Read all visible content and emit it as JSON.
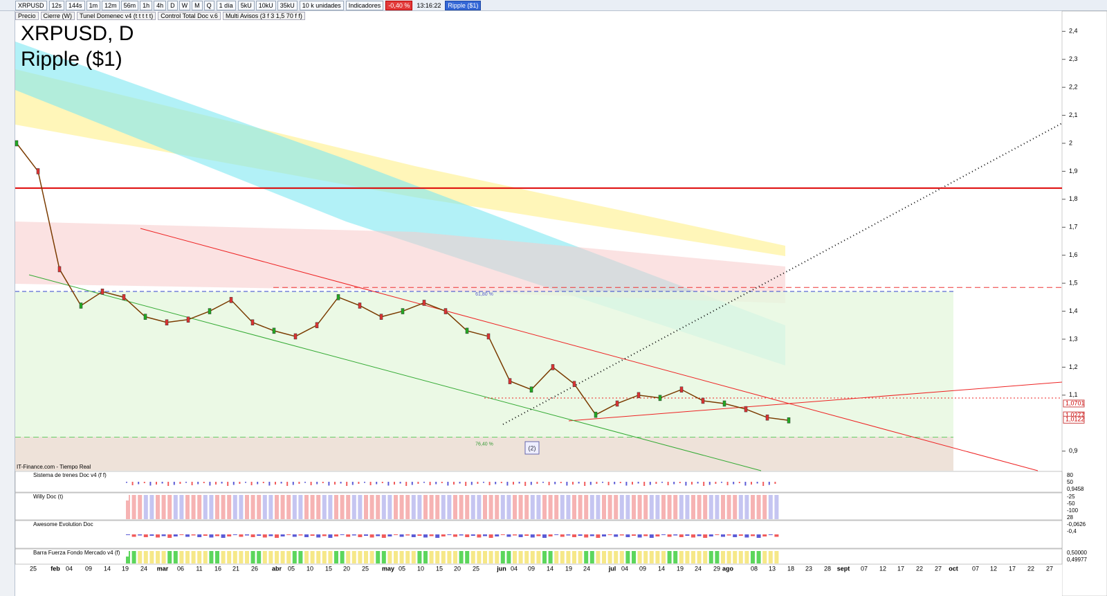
{
  "toolbar": {
    "symbol": "XRPUSD",
    "intervals": [
      "12s",
      "144s",
      "1m",
      "12m",
      "56m",
      "1h",
      "4h",
      "D",
      "W",
      "M",
      "Q"
    ],
    "period": "1 día",
    "units": [
      "5kU",
      "10kU",
      "35kU"
    ],
    "unit_mode": "10 k unidades",
    "indicators": "Indicadores",
    "change": "-0,40 %",
    "time": "13:16:22",
    "name": "Ripple ($1)"
  },
  "overlays": [
    "Precio",
    "Cierre (W)",
    "Tunel Domenec v4 (t t t t t)",
    "Control Total Doc v.6",
    "Multi Avisos (3 f 3 1,5 70 f f)"
  ],
  "chart": {
    "title": "XRPUSD, D",
    "subtitle": "Ripple ($1)",
    "source": "IT-Finance.com - Tiempo Real",
    "marker": "(2)",
    "ylim": [
      0.83,
      2.47
    ],
    "yticks": [
      {
        "value": 2.4,
        "label": "2,4"
      },
      {
        "value": 2.3,
        "label": "2,3"
      },
      {
        "value": 2.2,
        "label": "2,2"
      },
      {
        "value": 2.1,
        "label": "2,1"
      },
      2,
      {
        "value": 1.9,
        "label": "1,9"
      },
      {
        "value": 1.8,
        "label": "1,8"
      },
      {
        "value": 1.7,
        "label": "1,7"
      },
      {
        "value": 1.6,
        "label": "1,6"
      },
      {
        "value": 1.5,
        "label": "1,5"
      },
      {
        "value": 1.4,
        "label": "1,4"
      },
      {
        "value": 1.3,
        "label": "1,3"
      },
      {
        "value": 1.2,
        "label": "1,2"
      },
      {
        "value": 1.1,
        "label": "1,1"
      },
      {
        "value": 0.9,
        "label": "0,9"
      }
    ],
    "price_labels": [
      {
        "value": 1.0701,
        "label": "1,0701"
      },
      {
        "value": 1.0277,
        "label": "1,0277"
      },
      {
        "value": 1.0122,
        "label": "1,0122"
      }
    ],
    "levels": [
      {
        "value": 1.485,
        "label": "61,80 %"
      },
      {
        "value": 0.95,
        "label": "76,40 %"
      }
    ],
    "resistance": 1.84,
    "close": [
      2.0,
      1.9,
      1.55,
      1.42,
      1.47,
      1.45,
      1.38,
      1.36,
      1.37,
      1.4,
      1.44,
      1.36,
      1.33,
      1.31,
      1.35,
      1.45,
      1.42,
      1.38,
      1.4,
      1.43,
      1.4,
      1.33,
      1.31,
      1.15,
      1.12,
      1.2,
      1.14,
      1.03,
      1.07,
      1.1,
      1.09,
      1.12,
      1.08,
      1.07,
      1.05,
      1.02,
      1.01
    ],
    "xlabels": [
      "25",
      "feb",
      "04",
      "09",
      "14",
      "19",
      "24",
      "mar",
      "06",
      "11",
      "16",
      "21",
      "26",
      "abr",
      "05",
      "10",
      "15",
      "20",
      "25",
      "may",
      "05",
      "10",
      "15",
      "20",
      "25",
      "jun",
      "04",
      "09",
      "14",
      "19",
      "24",
      "jul",
      "04",
      "09",
      "14",
      "19",
      "24",
      "29",
      "ago",
      "08",
      "13",
      "18",
      "23",
      "28",
      "sept",
      "07",
      "12",
      "17",
      "22",
      "27",
      "oct",
      "07",
      "12",
      "17",
      "22",
      "27"
    ]
  },
  "panels": [
    {
      "name": "Sistema de trenes Doc v4 (f f)",
      "labels": [
        "80",
        "50",
        "0,9458"
      ]
    },
    {
      "name": "Willy Doc (t)",
      "labels": [
        "-25",
        "-50",
        "-100",
        "28"
      ]
    },
    {
      "name": "Awesome Evolution Doc",
      "labels": [
        "-0,0626",
        "-0,4"
      ]
    },
    {
      "name": "Barra Fuerza Fondo Mercado v4 (f)",
      "labels": [
        "0,50000",
        "0,49977"
      ]
    }
  ]
}
